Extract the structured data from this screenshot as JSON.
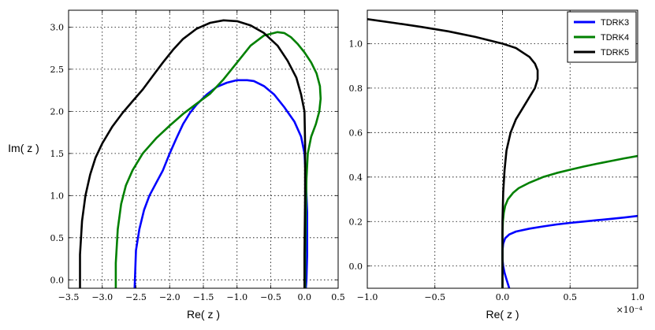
{
  "chart_data": [
    {
      "type": "line",
      "xlabel": "Re( z )",
      "ylabel": "Im( z )",
      "xlim": [
        -3.5,
        0.5
      ],
      "ylim": [
        -0.1,
        3.2
      ],
      "xticks": [
        -3.5,
        -3.0,
        -2.5,
        -2.0,
        -1.5,
        -1.0,
        -0.5,
        0.0,
        0.5
      ],
      "xtick_labels": [
        "−3.5",
        "−3.0",
        "−2.5",
        "−2.0",
        "−1.5",
        "−1.0",
        "−0.5",
        "0.0",
        "0.5"
      ],
      "yticks": [
        0.0,
        0.5,
        1.0,
        1.5,
        2.0,
        2.5,
        3.0
      ],
      "ytick_labels": [
        "0.0",
        "0.5",
        "1.0",
        "1.5",
        "2.0",
        "2.5",
        "3.0"
      ],
      "grid": true,
      "series": [
        {
          "color": "#0000ff",
          "x": [
            -2.52,
            -2.5,
            -2.45,
            -2.38,
            -2.3,
            -2.2,
            -2.1,
            -2.0,
            -1.9,
            -1.8,
            -1.7,
            -1.6,
            -1.45,
            -1.3,
            -1.15,
            -1.0,
            -0.85,
            -0.75,
            -0.6,
            -0.45,
            -0.3,
            -0.15,
            -0.05,
            0.0,
            0.02,
            0.04,
            0.04,
            0.03,
            0.02
          ],
          "y": [
            -0.1,
            0.35,
            0.6,
            0.83,
            1.0,
            1.15,
            1.3,
            1.5,
            1.68,
            1.85,
            1.98,
            2.08,
            2.2,
            2.29,
            2.34,
            2.37,
            2.37,
            2.36,
            2.3,
            2.2,
            2.05,
            1.88,
            1.7,
            1.5,
            1.2,
            0.8,
            0.3,
            0.0,
            -0.1
          ]
        },
        {
          "color": "#008000",
          "x": [
            -2.8,
            -2.8,
            -2.77,
            -2.72,
            -2.65,
            -2.55,
            -2.4,
            -2.2,
            -2.0,
            -1.8,
            -1.6,
            -1.4,
            -1.2,
            -1.0,
            -0.8,
            -0.6,
            -0.4,
            -0.3,
            -0.2,
            -0.1,
            0.0,
            0.1,
            0.18,
            0.23,
            0.24,
            0.22,
            0.17,
            0.1,
            0.05,
            0.03,
            0.02,
            0.01,
            0.01
          ],
          "y": [
            -0.1,
            0.2,
            0.6,
            0.9,
            1.12,
            1.3,
            1.5,
            1.68,
            1.83,
            1.97,
            2.09,
            2.21,
            2.38,
            2.58,
            2.78,
            2.9,
            2.94,
            2.93,
            2.88,
            2.8,
            2.7,
            2.58,
            2.45,
            2.3,
            2.15,
            2.0,
            1.85,
            1.7,
            1.5,
            1.2,
            0.8,
            0.3,
            -0.1
          ]
        },
        {
          "color": "#000000",
          "x": [
            -3.33,
            -3.33,
            -3.3,
            -3.25,
            -3.18,
            -3.1,
            -3.0,
            -2.85,
            -2.7,
            -2.55,
            -2.4,
            -2.25,
            -2.1,
            -1.95,
            -1.8,
            -1.6,
            -1.4,
            -1.2,
            -1.0,
            -0.8,
            -0.6,
            -0.4,
            -0.25,
            -0.12,
            -0.05,
            0.0,
            0.01,
            0.01,
            0.0,
            0.0
          ],
          "y": [
            -0.1,
            0.3,
            0.7,
            1.0,
            1.25,
            1.45,
            1.62,
            1.82,
            1.98,
            2.12,
            2.26,
            2.42,
            2.58,
            2.73,
            2.86,
            2.98,
            3.05,
            3.08,
            3.07,
            3.02,
            2.93,
            2.78,
            2.6,
            2.4,
            2.2,
            2.0,
            1.6,
            1.0,
            0.3,
            -0.1
          ]
        }
      ]
    },
    {
      "type": "line",
      "xlabel": "Re( z )",
      "x_scale_label": "×10⁻⁴",
      "xlim": [
        -1.0,
        1.0
      ],
      "ylim": [
        -0.1,
        1.15
      ],
      "xticks": [
        -1.0,
        -0.5,
        0.0,
        0.5,
        1.0
      ],
      "xtick_labels": [
        "−1.0",
        "−0.5",
        "0.0",
        "0.5",
        "1.0"
      ],
      "yticks": [
        0.0,
        0.2,
        0.4,
        0.6,
        0.8,
        1.0
      ],
      "ytick_labels": [
        "0.0",
        "0.2",
        "0.4",
        "0.6",
        "0.8",
        "1.0"
      ],
      "grid": true,
      "legend": "top-right",
      "series": [
        {
          "name": "TDRK3",
          "color": "#0000ff",
          "x": [
            0.05,
            0.03,
            0.015,
            0.005,
            0.0,
            0.0,
            0.005,
            0.02,
            0.05,
            0.1,
            0.2,
            0.3,
            0.4,
            0.5,
            0.6,
            0.7,
            0.8,
            0.9,
            1.0
          ],
          "y": [
            -0.1,
            -0.06,
            -0.03,
            0.0,
            0.03,
            0.07,
            0.1,
            0.125,
            0.142,
            0.155,
            0.168,
            0.178,
            0.187,
            0.194,
            0.2,
            0.206,
            0.212,
            0.218,
            0.225
          ]
        },
        {
          "name": "TDRK4",
          "color": "#008000",
          "x": [
            0.0,
            0.0,
            0.003,
            0.01,
            0.02,
            0.04,
            0.08,
            0.12,
            0.2,
            0.3,
            0.4,
            0.5,
            0.6,
            0.7,
            0.8,
            0.9,
            1.0
          ],
          "y": [
            -0.1,
            0.15,
            0.2,
            0.24,
            0.27,
            0.3,
            0.33,
            0.35,
            0.375,
            0.4,
            0.418,
            0.433,
            0.447,
            0.46,
            0.472,
            0.484,
            0.495
          ]
        },
        {
          "name": "TDRK5",
          "color": "#000000",
          "x": [
            0.0,
            0.0,
            0.005,
            0.015,
            0.03,
            0.06,
            0.1,
            0.15,
            0.2,
            0.24,
            0.26,
            0.26,
            0.24,
            0.2,
            0.15,
            0.1,
            0.05,
            0.0,
            -0.2,
            -0.4,
            -0.6,
            -0.8,
            -1.0
          ],
          "y": [
            -0.1,
            0.2,
            0.33,
            0.43,
            0.52,
            0.6,
            0.66,
            0.71,
            0.76,
            0.8,
            0.84,
            0.88,
            0.91,
            0.94,
            0.96,
            0.98,
            0.99,
            1.0,
            1.03,
            1.055,
            1.075,
            1.093,
            1.11
          ]
        }
      ]
    }
  ]
}
